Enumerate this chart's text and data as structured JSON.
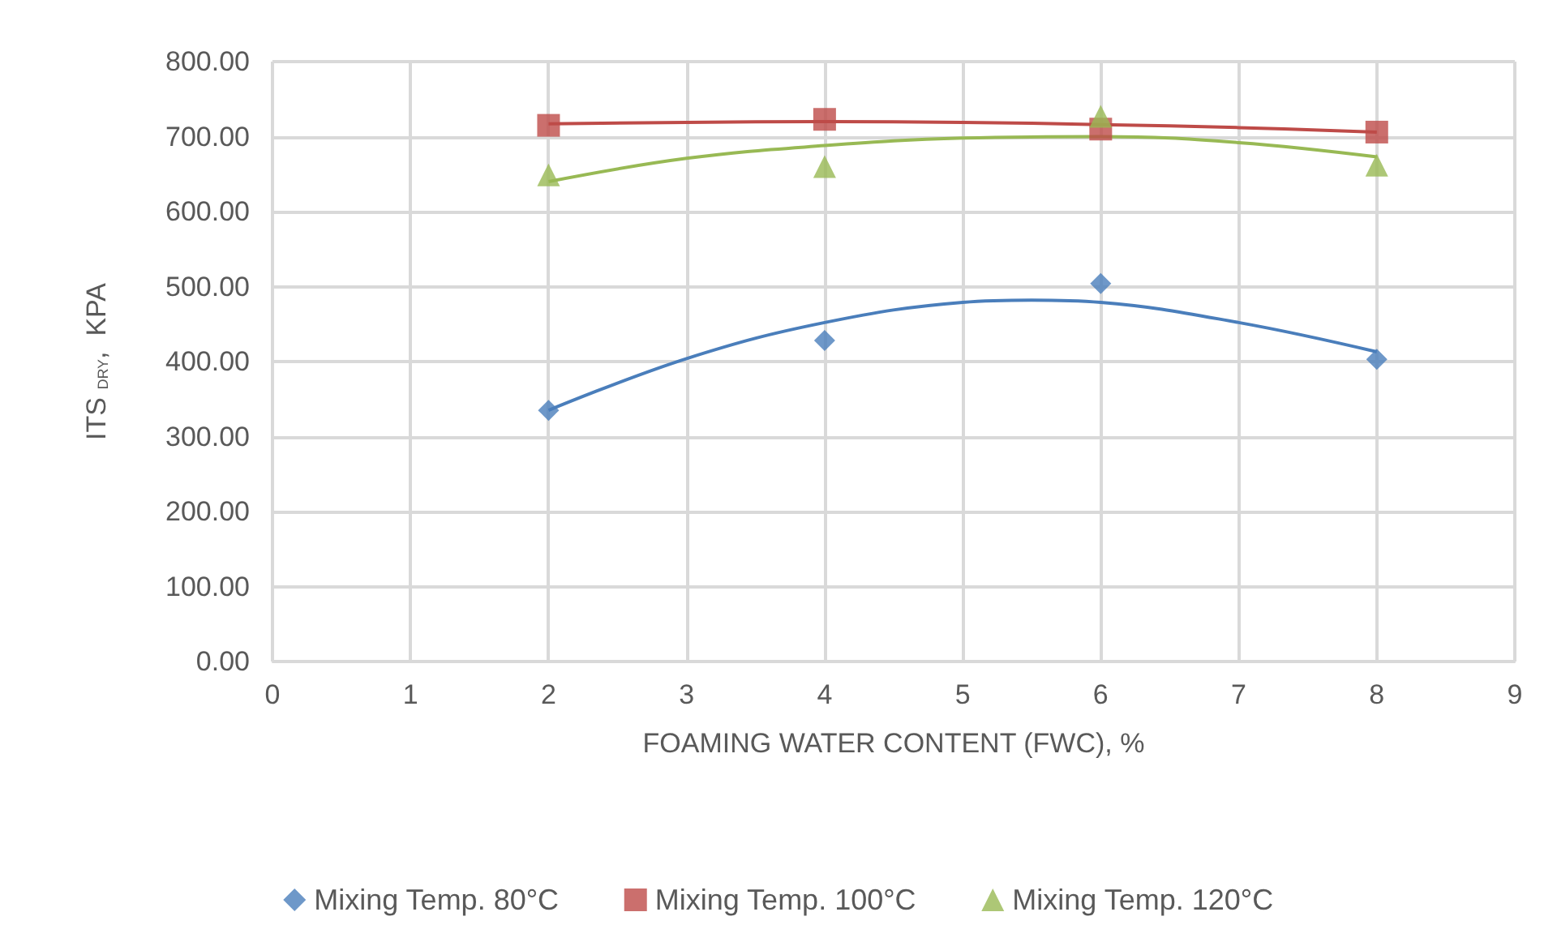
{
  "chart_data": {
    "type": "scatter",
    "xlabel": "FOAMING WATER CONTENT (FWC), %",
    "ylabel": "ITS $_{DRY}$,  KPA",
    "x": [
      2,
      4,
      6,
      8
    ],
    "series": [
      {
        "name": "Mixing Temp. 80°C",
        "color": "#4a7ebb",
        "marker": "diamond",
        "values": [
          335,
          428,
          504,
          403
        ]
      },
      {
        "name": "Mixing Temp. 100°C",
        "color": "#be4b48",
        "marker": "square",
        "values": [
          715,
          723,
          710,
          706
        ]
      },
      {
        "name": "Mixing Temp. 120°C",
        "color": "#98b954",
        "marker": "triangle",
        "values": [
          649,
          660,
          727,
          662
        ]
      },
      {
        "type": "line",
        "color": "#4a7ebb",
        "marker": "none",
        "x": [
          2,
          3,
          4,
          5,
          5.5,
          6,
          7,
          8
        ],
        "values": [
          335,
          404,
          452,
          479,
          482,
          479,
          452,
          413
        ]
      },
      {
        "type": "line",
        "color": "#be4b48",
        "marker": "none",
        "x": [
          2,
          3,
          4,
          5,
          6,
          7,
          8
        ],
        "values": [
          717,
          719,
          720,
          719,
          716,
          712,
          706
        ]
      },
      {
        "type": "line",
        "color": "#98b954",
        "marker": "none",
        "x": [
          2,
          3,
          4,
          5,
          6,
          7,
          8
        ],
        "values": [
          640,
          671,
          688,
          698,
          700,
          692,
          673
        ]
      }
    ],
    "xlim": [
      0,
      9
    ],
    "xticks": [
      0,
      1,
      2,
      3,
      4,
      5,
      6,
      7,
      8,
      9
    ],
    "ylim": [
      0,
      800
    ],
    "yticks": [
      {
        "value": 0,
        "label": "0.00"
      },
      {
        "value": 100,
        "label": "100.00"
      },
      {
        "value": 200,
        "label": "200.00"
      },
      {
        "value": 300,
        "label": "300.00"
      },
      {
        "value": 400,
        "label": "400.00"
      },
      {
        "value": 500,
        "label": "500.00"
      },
      {
        "value": 600,
        "label": "600.00"
      },
      {
        "value": 700,
        "label": "700.00"
      },
      {
        "value": 800,
        "label": "800.00"
      }
    ],
    "grid": true,
    "legend": "bottom"
  }
}
